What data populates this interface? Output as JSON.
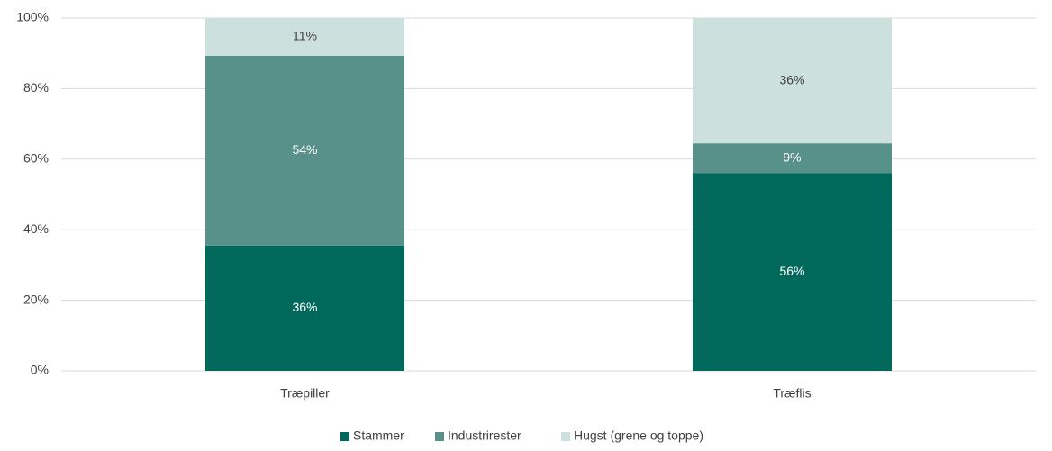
{
  "chart_data": {
    "type": "stacked-bar",
    "categories": [
      "Træpiller",
      "Træflis"
    ],
    "series": [
      {
        "name": "Stammer",
        "color": "#00695b",
        "label_color": "#ffffff",
        "values": [
          35.5,
          56.0
        ],
        "value_labels": [
          "36%",
          "56%"
        ]
      },
      {
        "name": "Industrirester",
        "color": "#579189",
        "label_color": "#ffffff",
        "values": [
          53.8,
          8.5
        ],
        "value_labels": [
          "54%",
          "9%"
        ]
      },
      {
        "name": "Hugst (grene og toppe)",
        "color": "#cce1de",
        "label_color": "#404040",
        "values": [
          10.7,
          35.5
        ],
        "value_labels": [
          "11%",
          "36%"
        ]
      }
    ],
    "ylim": [
      0,
      100
    ],
    "yticks": [
      {
        "value": 0,
        "label": "0%"
      },
      {
        "value": 20,
        "label": "20%"
      },
      {
        "value": 40,
        "label": "40%"
      },
      {
        "value": 60,
        "label": "60%"
      },
      {
        "value": 80,
        "label": "80%"
      },
      {
        "value": 100,
        "label": "100%"
      }
    ],
    "grid": true,
    "legend": "bottom"
  }
}
